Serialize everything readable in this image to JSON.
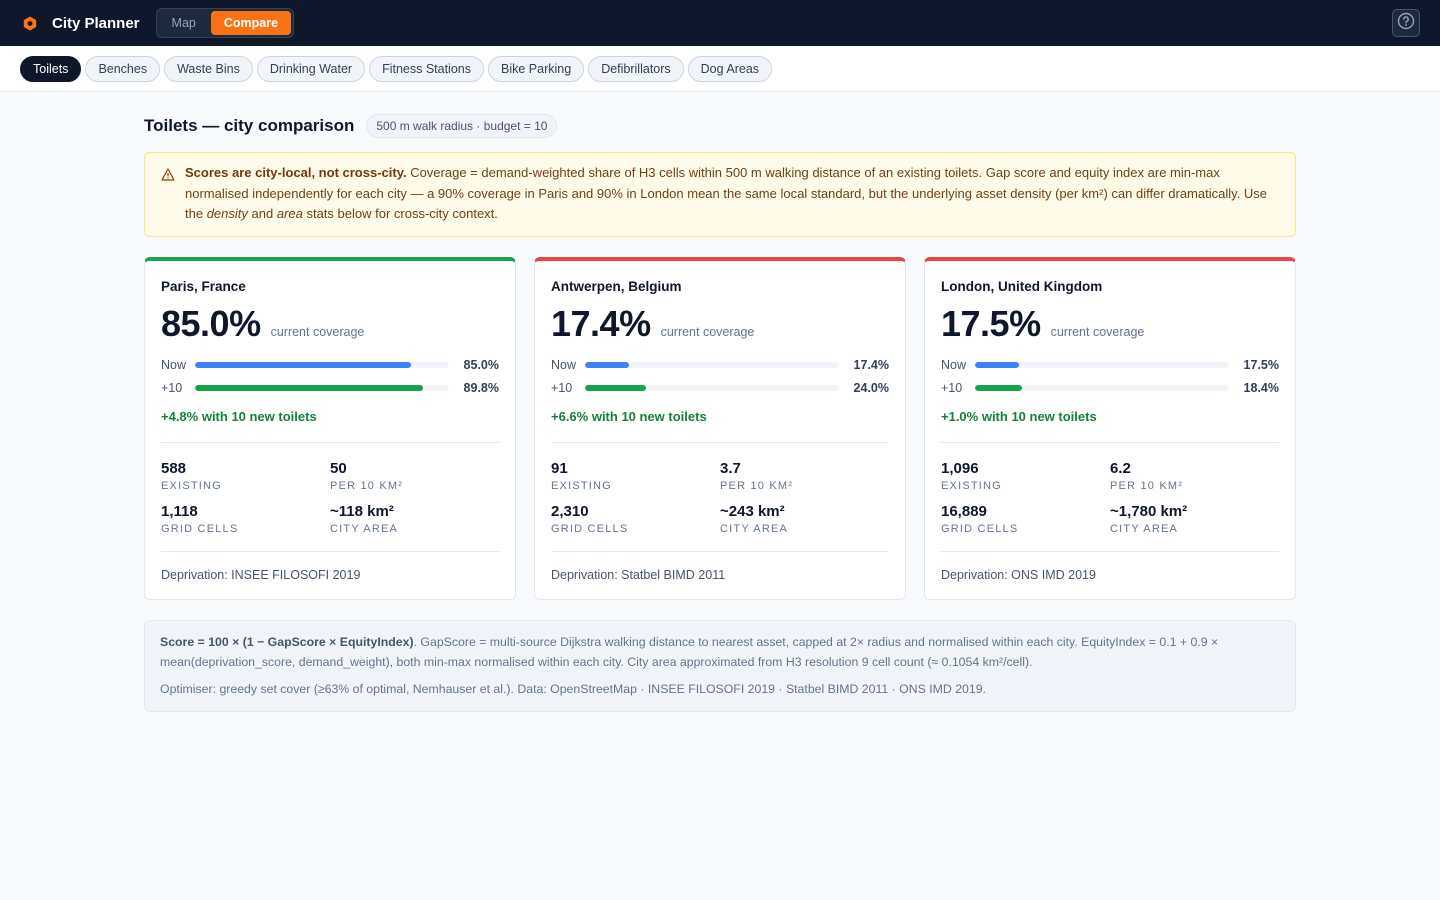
{
  "app": {
    "title": "City Planner",
    "brand_color": "#f97316"
  },
  "modes": [
    {
      "label": "Map",
      "active": false
    },
    {
      "label": "Compare",
      "active": true
    }
  ],
  "help_icon": "question-circle-icon",
  "categories": [
    "Toilets",
    "Benches",
    "Waste Bins",
    "Drinking Water",
    "Fitness Stations",
    "Bike Parking",
    "Defibrillators",
    "Dog Areas"
  ],
  "active_category": "Toilets",
  "page": {
    "title": "Toilets — city comparison",
    "params": "500 m walk radius · budget = 10"
  },
  "notice": {
    "icon": "warning-icon",
    "lead": "Scores are city-local, not cross-city.",
    "part1": " Coverage = demand-weighted share of H3 cells within 500 m walking distance of an existing toilets. Gap score and equity index are min-max normalised independently for each city — a 90% coverage in Paris and 90% in London mean the same local standard, but the underlying asset density (per km²) can differ dramatically. Use the ",
    "em1": "density",
    "part2": " and ",
    "em2": "area",
    "part3": " stats below for cross-city context."
  },
  "labels": {
    "caption": "current coverage",
    "now": "Now",
    "plus10": "+10",
    "existing": "EXISTING",
    "density": "PER 10 KM²",
    "grid": "GRID CELLS",
    "area": "CITY AREA"
  },
  "cities": [
    {
      "name": "Paris, France",
      "coverage": "85.0%",
      "now": 0.85,
      "now_label": "85.0%",
      "after": 0.898,
      "after_label": "89.8%",
      "gain": "+4.8% with 10 new toilets",
      "existing": "588",
      "density": "50",
      "grid_cells": "1,118",
      "area": "~118 km²",
      "source": "Deprivation: INSEE FILOSOFI 2019",
      "accent": "#16a34a"
    },
    {
      "name": "Antwerpen, Belgium",
      "coverage": "17.4%",
      "now": 0.174,
      "now_label": "17.4%",
      "after": 0.24,
      "after_label": "24.0%",
      "gain": "+6.6% with 10 new toilets",
      "existing": "91",
      "density": "3.7",
      "grid_cells": "2,310",
      "area": "~243 km²",
      "source": "Deprivation: Statbel BIMD 2011",
      "accent": "#ef4444"
    },
    {
      "name": "London, United Kingdom",
      "coverage": "17.5%",
      "now": 0.175,
      "now_label": "17.5%",
      "after": 0.184,
      "after_label": "18.4%",
      "gain": "+1.0% with 10 new toilets",
      "existing": "1,096",
      "density": "6.2",
      "grid_cells": "16,889",
      "area": "~1,780 km²",
      "source": "Deprivation: ONS IMD 2019",
      "accent": "#ef4444"
    }
  ],
  "footnote": {
    "formula": "Score = 100 × (1 − GapScore × EquityIndex)",
    "text1": ". GapScore = multi-source Dijkstra walking distance to nearest asset, capped at 2× radius and normalised within each city. EquityIndex = 0.1 + 0.9 × mean(deprivation_score, demand_weight), both min-max normalised within each city. City area approximated from H3 resolution 9 cell count (≈ 0.1054 km²/cell).",
    "text2": "Optimiser: greedy set cover (≥63% of optimal, Nemhauser et al.). Data: OpenStreetMap · INSEE FILOSOFI 2019 · Statbel BIMD 2011 · ONS IMD 2019."
  }
}
